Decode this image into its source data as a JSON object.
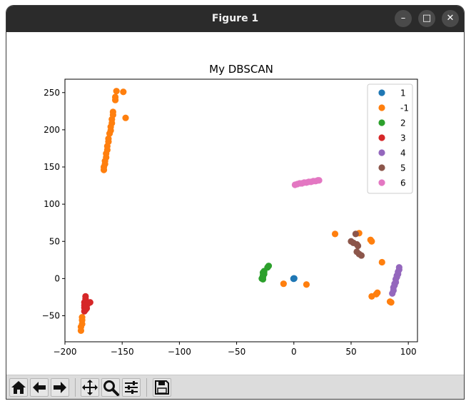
{
  "window": {
    "title": "Figure 1",
    "minimize_glyph": "–",
    "maximize_glyph": "□",
    "close_glyph": "✕"
  },
  "toolbar": {
    "buttons": [
      {
        "name": "home-button",
        "icon": "home-icon"
      },
      {
        "name": "back-button",
        "icon": "arrow-left-icon"
      },
      {
        "name": "forward-button",
        "icon": "arrow-right-icon"
      },
      {
        "name": "pan-button",
        "icon": "move-icon"
      },
      {
        "name": "zoom-button",
        "icon": "magnifier-icon"
      },
      {
        "name": "configure-subplots-button",
        "icon": "sliders-icon"
      },
      {
        "name": "save-button",
        "icon": "floppy-disk-icon"
      }
    ]
  },
  "chart_data": {
    "type": "scatter",
    "title": "My DBSCAN",
    "xlabel": "",
    "ylabel": "",
    "xlim": [
      -200,
      108
    ],
    "ylim": [
      -85,
      268
    ],
    "xticks": [
      -200,
      -150,
      -100,
      -50,
      0,
      50,
      100
    ],
    "yticks": [
      -50,
      0,
      50,
      100,
      150,
      200,
      250
    ],
    "grid": false,
    "legend_position": "top-right",
    "series": [
      {
        "name": "1",
        "color": "#1f77b4",
        "points": [
          [
            0,
            0
          ],
          [
            0.3,
            0.2
          ],
          [
            -0.3,
            -0.2
          ],
          [
            0.1,
            -0.1
          ],
          [
            -0.1,
            0.1
          ]
        ]
      },
      {
        "name": "-1",
        "color": "#ff7f0e",
        "points": [
          [
            -155,
            252
          ],
          [
            -149,
            251
          ],
          [
            -156,
            244
          ],
          [
            -156,
            240
          ],
          [
            -147,
            216
          ],
          [
            -158,
            224
          ],
          [
            -158,
            220
          ],
          [
            -159,
            214
          ],
          [
            -159,
            209
          ],
          [
            -160,
            204
          ],
          [
            -160,
            199
          ],
          [
            -161,
            195
          ],
          [
            -162,
            188
          ],
          [
            -162,
            184
          ],
          [
            -163,
            178
          ],
          [
            -163,
            173
          ],
          [
            -164,
            168
          ],
          [
            -164,
            163
          ],
          [
            -165,
            158
          ],
          [
            -165,
            154
          ],
          [
            -166,
            150
          ],
          [
            -166,
            146
          ],
          [
            -185,
            -52
          ],
          [
            -185,
            -56
          ],
          [
            -185,
            -61
          ],
          [
            -186,
            -65
          ],
          [
            -186,
            -70
          ],
          [
            -9,
            -7
          ],
          [
            11,
            -8
          ],
          [
            36,
            60
          ],
          [
            57,
            61
          ],
          [
            67,
            52
          ],
          [
            68,
            50
          ],
          [
            77,
            22
          ],
          [
            84,
            -31
          ],
          [
            85,
            -32
          ],
          [
            68,
            -24
          ],
          [
            72,
            -21
          ],
          [
            73,
            -19
          ]
        ]
      },
      {
        "name": "2",
        "color": "#2ca02c",
        "points": [
          [
            -22,
            17
          ],
          [
            -23,
            15
          ],
          [
            -26,
            10
          ],
          [
            -26,
            6
          ],
          [
            -27,
            4
          ],
          [
            -27,
            2
          ],
          [
            -28,
            0
          ],
          [
            -27,
            8
          ],
          [
            -26,
            9
          ],
          [
            -27,
            -1
          ]
        ]
      },
      {
        "name": "3",
        "color": "#d62728",
        "points": [
          [
            -182,
            -24
          ],
          [
            -182,
            -27
          ],
          [
            -182,
            -30
          ],
          [
            -183,
            -32
          ],
          [
            -178,
            -32
          ],
          [
            -180,
            -34
          ],
          [
            -183,
            -36
          ],
          [
            -183,
            -39
          ],
          [
            -182,
            -42
          ],
          [
            -183,
            -44
          ],
          [
            -181,
            -40
          ]
        ]
      },
      {
        "name": "4",
        "color": "#9467bd",
        "points": [
          [
            86,
            -20
          ],
          [
            87,
            -16
          ],
          [
            87,
            -12
          ],
          [
            88,
            -9
          ],
          [
            89,
            -5
          ],
          [
            89,
            -1
          ],
          [
            90,
            2
          ],
          [
            91,
            6
          ],
          [
            91,
            9
          ],
          [
            92,
            12
          ],
          [
            92,
            15
          ],
          [
            90,
            4
          ],
          [
            88,
            -7
          ]
        ]
      },
      {
        "name": "5",
        "color": "#8c564b",
        "points": [
          [
            54,
            60
          ],
          [
            50,
            50
          ],
          [
            52,
            48
          ],
          [
            55,
            46
          ],
          [
            56,
            44
          ],
          [
            55,
            36
          ],
          [
            57,
            33
          ],
          [
            59,
            31
          ]
        ]
      },
      {
        "name": "6",
        "color": "#e377c2",
        "points": [
          [
            1,
            126
          ],
          [
            3,
            127
          ],
          [
            5,
            128
          ],
          [
            7,
            128
          ],
          [
            9,
            129
          ],
          [
            11,
            129
          ],
          [
            13,
            130
          ],
          [
            15,
            130
          ],
          [
            17,
            131
          ],
          [
            19,
            131
          ],
          [
            21,
            132
          ],
          [
            22,
            132
          ]
        ]
      }
    ]
  }
}
